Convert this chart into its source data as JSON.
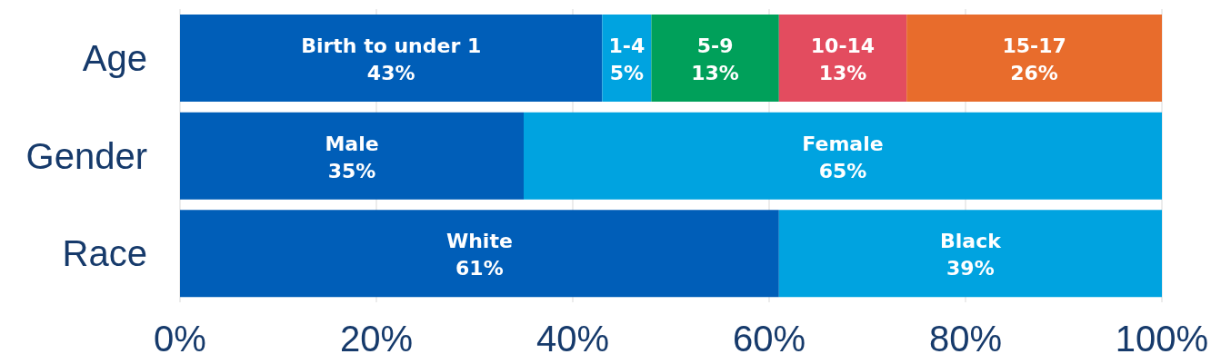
{
  "chart_data": {
    "type": "bar",
    "orientation": "horizontal",
    "stacked": true,
    "categories": [
      "Age",
      "Gender",
      "Race"
    ],
    "series": [
      {
        "name": "Birth to under 1",
        "color": "#005eb8",
        "values": [
          43,
          null,
          null
        ],
        "value_labels": [
          "43%",
          null,
          null
        ]
      },
      {
        "name": "1-4",
        "color": "#00a3e0",
        "values": [
          5,
          null,
          null
        ],
        "value_labels": [
          "5%",
          null,
          null
        ]
      },
      {
        "name": "5-9",
        "color": "#00a05a",
        "values": [
          13,
          null,
          null
        ],
        "value_labels": [
          "13%",
          null,
          null
        ]
      },
      {
        "name": "10-14",
        "color": "#e34c5f",
        "values": [
          13,
          null,
          null
        ],
        "value_labels": [
          "13%",
          null,
          null
        ]
      },
      {
        "name": "15-17",
        "color": "#e86c2c",
        "values": [
          26,
          null,
          null
        ],
        "value_labels": [
          "26%",
          null,
          null
        ]
      },
      {
        "name": "Male",
        "color": "#005eb8",
        "values": [
          null,
          35,
          null
        ],
        "value_labels": [
          null,
          "35%",
          null
        ]
      },
      {
        "name": "Female",
        "color": "#00a3e0",
        "values": [
          null,
          65,
          null
        ],
        "value_labels": [
          null,
          "65%",
          null
        ]
      },
      {
        "name": "White",
        "color": "#005eb8",
        "values": [
          null,
          null,
          61
        ],
        "value_labels": [
          null,
          null,
          "61%"
        ]
      },
      {
        "name": "Black",
        "color": "#00a3e0",
        "values": [
          null,
          null,
          39
        ],
        "value_labels": [
          null,
          null,
          "39%"
        ]
      }
    ],
    "xlim": [
      0,
      100
    ],
    "xticks": [
      {
        "value": 0,
        "label": "0%"
      },
      {
        "value": 20,
        "label": "20%"
      },
      {
        "value": 40,
        "label": "40%"
      },
      {
        "value": 60,
        "label": "60%"
      },
      {
        "value": 80,
        "label": "80%"
      },
      {
        "value": 100,
        "label": "100%"
      }
    ],
    "grid": "x",
    "legend": false
  }
}
